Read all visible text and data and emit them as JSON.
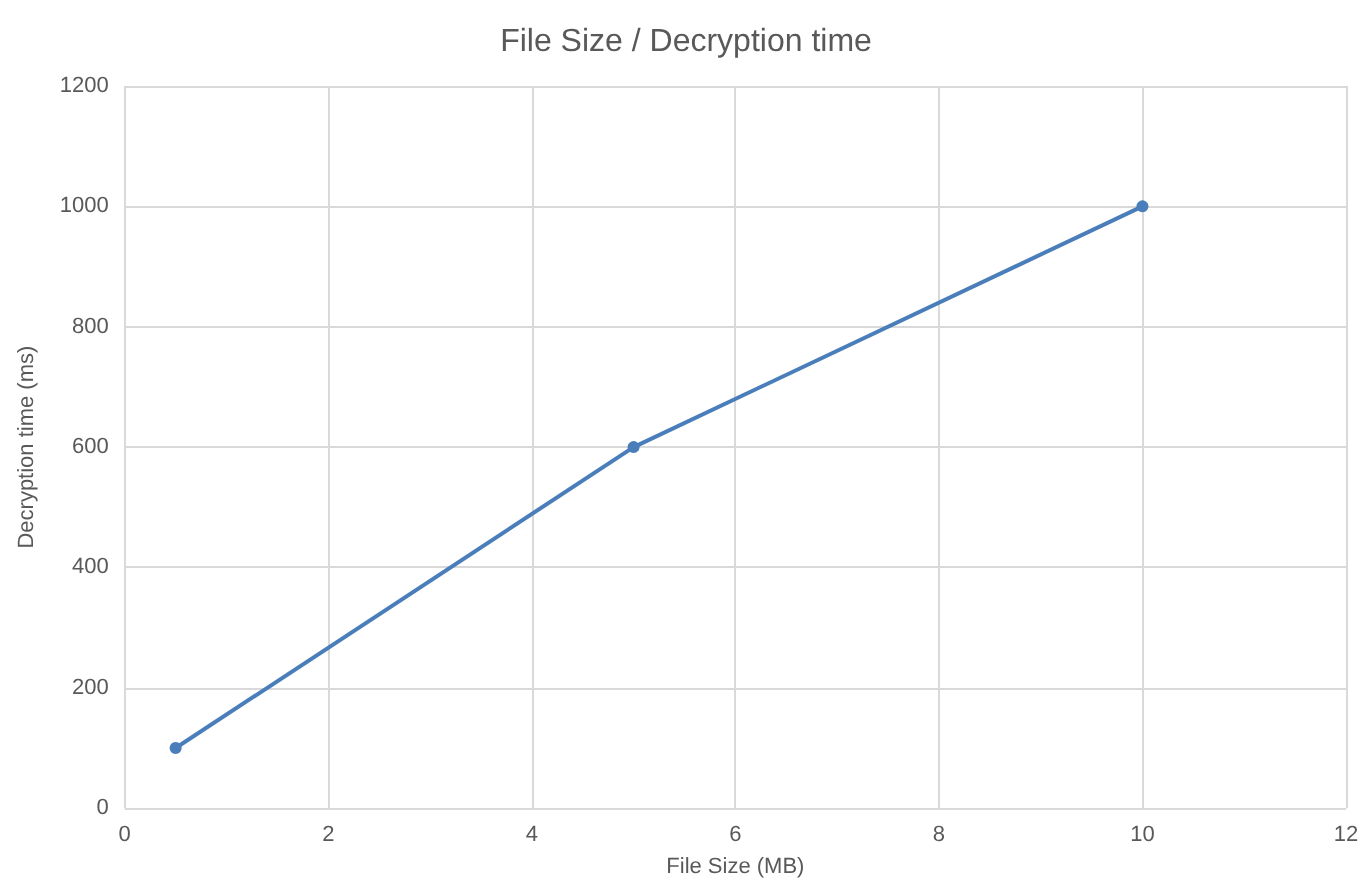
{
  "chart_data": {
    "type": "line",
    "title": "File Size / Decryption time",
    "xlabel": "File Size (MB)",
    "ylabel": "Decryption time (ms)",
    "x": [
      0.5,
      5,
      10
    ],
    "series": [
      {
        "color": "#4a7ebb",
        "values": [
          100,
          600,
          1000
        ]
      }
    ],
    "xlim": [
      0,
      12
    ],
    "xticks": [
      0,
      2,
      4,
      6,
      8,
      10,
      12
    ],
    "ylim": [
      0,
      1200
    ],
    "yticks": [
      0,
      200,
      400,
      600,
      800,
      1000,
      1200
    ],
    "grid": true,
    "marker": "circle",
    "line_style": "solid"
  }
}
